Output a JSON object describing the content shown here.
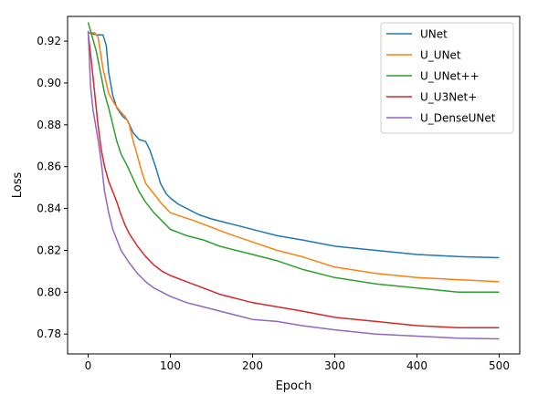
{
  "chart_data": {
    "type": "line",
    "title": "",
    "xlabel": "Epoch",
    "ylabel": "Loss",
    "xlim": [
      -25,
      525
    ],
    "ylim": [
      0.7705,
      0.9318
    ],
    "x_ticks": [
      0,
      100,
      200,
      300,
      400,
      500
    ],
    "x_tick_labels": [
      "0",
      "100",
      "200",
      "300",
      "400",
      "500"
    ],
    "y_ticks": [
      0.78,
      0.8,
      0.82,
      0.84,
      0.86,
      0.88,
      0.9,
      0.92
    ],
    "y_tick_labels": [
      "0.78",
      "0.80",
      "0.82",
      "0.84",
      "0.86",
      "0.88",
      "0.90",
      "0.92"
    ],
    "grid": false,
    "legend_position": "top-right",
    "series": [
      {
        "name": "UNet",
        "color": "#1f77b4",
        "points": [
          [
            0,
            0.924
          ],
          [
            10,
            0.923
          ],
          [
            18,
            0.923
          ],
          [
            22,
            0.918
          ],
          [
            25,
            0.905
          ],
          [
            30,
            0.894
          ],
          [
            35,
            0.888
          ],
          [
            42,
            0.884
          ],
          [
            48,
            0.882
          ],
          [
            55,
            0.876
          ],
          [
            62,
            0.873
          ],
          [
            70,
            0.872
          ],
          [
            75,
            0.868
          ],
          [
            82,
            0.86
          ],
          [
            88,
            0.852
          ],
          [
            95,
            0.847
          ],
          [
            100,
            0.845
          ],
          [
            110,
            0.842
          ],
          [
            120,
            0.84
          ],
          [
            135,
            0.837
          ],
          [
            150,
            0.835
          ],
          [
            170,
            0.833
          ],
          [
            190,
            0.831
          ],
          [
            210,
            0.829
          ],
          [
            230,
            0.827
          ],
          [
            260,
            0.825
          ],
          [
            300,
            0.822
          ],
          [
            350,
            0.82
          ],
          [
            400,
            0.818
          ],
          [
            450,
            0.817
          ],
          [
            500,
            0.8165
          ]
        ]
      },
      {
        "name": "U_UNet",
        "color": "#ff7f0e",
        "points": [
          [
            0,
            0.924
          ],
          [
            8,
            0.924
          ],
          [
            12,
            0.922
          ],
          [
            18,
            0.907
          ],
          [
            25,
            0.895
          ],
          [
            32,
            0.89
          ],
          [
            40,
            0.886
          ],
          [
            45,
            0.884
          ],
          [
            50,
            0.88
          ],
          [
            55,
            0.872
          ],
          [
            60,
            0.865
          ],
          [
            65,
            0.858
          ],
          [
            70,
            0.852
          ],
          [
            80,
            0.847
          ],
          [
            90,
            0.842
          ],
          [
            100,
            0.838
          ],
          [
            115,
            0.836
          ],
          [
            130,
            0.834
          ],
          [
            150,
            0.831
          ],
          [
            170,
            0.828
          ],
          [
            200,
            0.824
          ],
          [
            230,
            0.82
          ],
          [
            260,
            0.817
          ],
          [
            300,
            0.812
          ],
          [
            350,
            0.809
          ],
          [
            400,
            0.807
          ],
          [
            450,
            0.806
          ],
          [
            500,
            0.805
          ]
        ]
      },
      {
        "name": "U_UNet++",
        "color": "#2ca02c",
        "points": [
          [
            0,
            0.929
          ],
          [
            5,
            0.922
          ],
          [
            10,
            0.915
          ],
          [
            15,
            0.905
          ],
          [
            20,
            0.895
          ],
          [
            25,
            0.888
          ],
          [
            30,
            0.88
          ],
          [
            35,
            0.872
          ],
          [
            40,
            0.866
          ],
          [
            48,
            0.86
          ],
          [
            55,
            0.854
          ],
          [
            62,
            0.848
          ],
          [
            70,
            0.843
          ],
          [
            80,
            0.838
          ],
          [
            90,
            0.834
          ],
          [
            100,
            0.83
          ],
          [
            120,
            0.827
          ],
          [
            140,
            0.825
          ],
          [
            160,
            0.822
          ],
          [
            180,
            0.82
          ],
          [
            200,
            0.818
          ],
          [
            230,
            0.815
          ],
          [
            260,
            0.811
          ],
          [
            300,
            0.807
          ],
          [
            350,
            0.804
          ],
          [
            400,
            0.802
          ],
          [
            450,
            0.8
          ],
          [
            500,
            0.8
          ]
        ]
      },
      {
        "name": "U_U3Net+",
        "color": "#d62728",
        "points": [
          [
            0,
            0.924
          ],
          [
            4,
            0.91
          ],
          [
            8,
            0.895
          ],
          [
            12,
            0.88
          ],
          [
            16,
            0.868
          ],
          [
            20,
            0.86
          ],
          [
            25,
            0.853
          ],
          [
            30,
            0.848
          ],
          [
            35,
            0.843
          ],
          [
            40,
            0.837
          ],
          [
            45,
            0.832
          ],
          [
            50,
            0.828
          ],
          [
            60,
            0.822
          ],
          [
            70,
            0.817
          ],
          [
            80,
            0.813
          ],
          [
            90,
            0.81
          ],
          [
            100,
            0.808
          ],
          [
            120,
            0.805
          ],
          [
            140,
            0.802
          ],
          [
            160,
            0.799
          ],
          [
            180,
            0.797
          ],
          [
            200,
            0.795
          ],
          [
            230,
            0.793
          ],
          [
            260,
            0.791
          ],
          [
            300,
            0.788
          ],
          [
            350,
            0.786
          ],
          [
            400,
            0.784
          ],
          [
            450,
            0.783
          ],
          [
            500,
            0.783
          ]
        ]
      },
      {
        "name": "U_DenseUNet",
        "color": "#9467bd",
        "points": [
          [
            0,
            0.925
          ],
          [
            3,
            0.898
          ],
          [
            6,
            0.887
          ],
          [
            9,
            0.88
          ],
          [
            12,
            0.873
          ],
          [
            16,
            0.862
          ],
          [
            20,
            0.848
          ],
          [
            25,
            0.838
          ],
          [
            30,
            0.83
          ],
          [
            35,
            0.825
          ],
          [
            40,
            0.82
          ],
          [
            50,
            0.814
          ],
          [
            60,
            0.809
          ],
          [
            70,
            0.805
          ],
          [
            80,
            0.802
          ],
          [
            90,
            0.8
          ],
          [
            100,
            0.798
          ],
          [
            120,
            0.795
          ],
          [
            140,
            0.793
          ],
          [
            160,
            0.791
          ],
          [
            180,
            0.789
          ],
          [
            200,
            0.787
          ],
          [
            230,
            0.786
          ],
          [
            260,
            0.784
          ],
          [
            300,
            0.782
          ],
          [
            350,
            0.78
          ],
          [
            400,
            0.779
          ],
          [
            450,
            0.778
          ],
          [
            500,
            0.7777
          ]
        ]
      }
    ]
  }
}
